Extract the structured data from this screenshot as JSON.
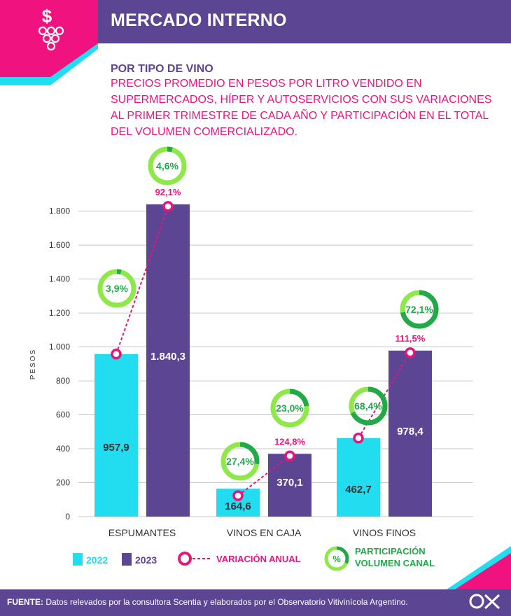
{
  "header": {
    "title": "MERCADO INTERNO",
    "icon": "dollar-grapes-icon"
  },
  "subtitle": "POR TIPO DE VINO",
  "description": "PRECIOS PROMEDIO EN PESOS POR LITRO VENDIDO EN SUPERMERCADOS, HÍPER Y AUTOSERVICIOS CON SUS VARIACIONES AL PRIMER TRIMESTRE DE CADA AÑO Y PARTICIPACIÓN EN EL TOTAL DEL VOLUMEN COMERCIALIZADO.",
  "colors": {
    "c2022": "#22dcef",
    "c2023": "#5c4593",
    "variation": "#e6147e",
    "participation": "#22a94a",
    "participation_light": "#8ee84a",
    "accent_pink": "#f0137f",
    "accent_cyan": "#22dcef"
  },
  "chart_data": {
    "type": "bar",
    "ylabel": "PESOS",
    "ylim": [
      0,
      1900
    ],
    "yticks": [
      0,
      200,
      400,
      600,
      800,
      1000,
      1200,
      1400,
      1600,
      1800
    ],
    "ytick_labels": [
      "0",
      "200",
      "400",
      "600",
      "800",
      "1.000",
      "1.200",
      "1.400",
      "1.600",
      "1.800"
    ],
    "grid": true,
    "categories": [
      "ESPUMANTES",
      "VINOS EN CAJA",
      "VINOS FINOS"
    ],
    "series": [
      {
        "name": "2022",
        "values": [
          957.9,
          164.6,
          462.7
        ],
        "labels": [
          "957,9",
          "164,6",
          "462,7"
        ]
      },
      {
        "name": "2023",
        "values": [
          1840.3,
          370.1,
          978.4
        ],
        "labels": [
          "1.840,3",
          "370,1",
          "978,4"
        ]
      }
    ],
    "variacion_anual": {
      "name": "VARIACIÓN ANUAL",
      "values": [
        92.1,
        124.8,
        111.5
      ],
      "labels": [
        "92,1%",
        "124,8%",
        "111,5%"
      ]
    },
    "participacion": {
      "name": "PARTICIPACIÓN VOLUMEN CANAL",
      "values_2022": [
        3.9,
        27.4,
        68.4
      ],
      "labels_2022": [
        "3,9%",
        "27,4%",
        "68,4%"
      ],
      "values_2023": [
        4.6,
        23.0,
        72.1
      ],
      "labels_2023": [
        "4,6%",
        "23,0%",
        "72,1%"
      ]
    },
    "legend": {
      "y2022": "2022",
      "y2023": "2023",
      "variation": "VARIACIÓN ANUAL",
      "part_line1": "PARTICIPACIÓN",
      "part_line2": "VOLUMEN CANAL",
      "part_symbol": "%"
    }
  },
  "footer": {
    "source_label": "FUENTE:",
    "source_text": "Datos relevados por la consultora Scentia y elaborados por el Observatorio Vitivinícola Argentino."
  }
}
